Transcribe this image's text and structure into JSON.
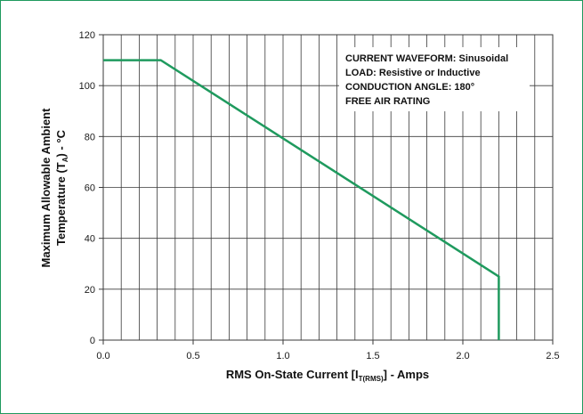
{
  "chart_data": {
    "type": "line",
    "x_label": {
      "main": "RMS On-State Current [I",
      "sub": "T(RMS)",
      "tail": "] - Amps"
    },
    "y_label": {
      "line1": "Maximum Allowable Ambient",
      "line2_main": "Temperature  (T",
      "line2_sub": "A",
      "line2_tail": ") - °C"
    },
    "x_ticks": [
      "0.0",
      "0.5",
      "1.0",
      "1.5",
      "2.0",
      "2.5"
    ],
    "y_ticks": [
      "0",
      "20",
      "40",
      "60",
      "80",
      "100",
      "120"
    ],
    "xlim": [
      0,
      2.5
    ],
    "ylim": [
      0,
      120
    ],
    "x_grid_step": 0.1,
    "y_grid_step": 20,
    "grid": true,
    "legend": null,
    "annotations": [
      "CURRENT WAVEFORM: Sinusoidal",
      "LOAD: Resistive or Inductive",
      "CONDUCTION ANGLE: 180°",
      "FREE AIR RATING"
    ],
    "series": [
      {
        "x": [
          0.0,
          0.32,
          2.2,
          2.2
        ],
        "y": [
          110,
          110,
          25,
          0
        ]
      }
    ],
    "colors": {
      "line": "#1f9a5e",
      "grid": "#3a3a3a",
      "frame": "#1f9a5e"
    }
  }
}
